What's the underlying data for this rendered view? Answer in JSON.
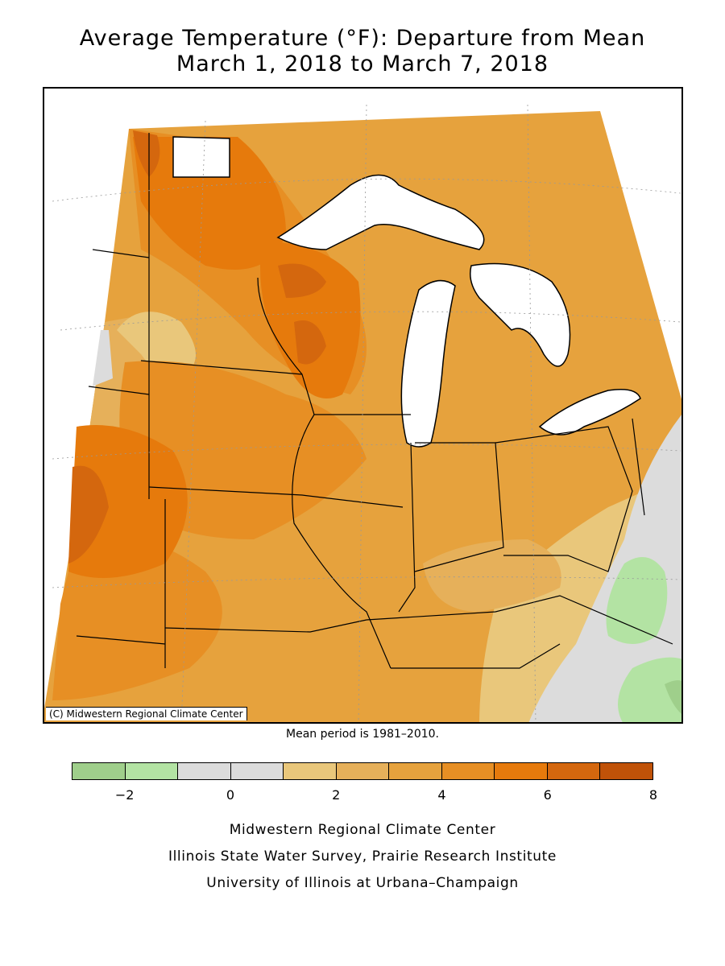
{
  "title": {
    "line1": "Average Temperature (°F): Departure from Mean",
    "line2": "March 1, 2018 to March 7, 2018"
  },
  "map": {
    "copyright": "(C) Midwestern Regional Climate Center"
  },
  "mean_period": "Mean period is 1981–2010.",
  "legend": {
    "ticks": [
      "−2",
      "0",
      "2",
      "4",
      "6",
      "8"
    ],
    "colors": [
      "#9fcf8b",
      "#b3e3a3",
      "#dcdcdc",
      "#dcdcdc",
      "#e9c77b",
      "#e6b05a",
      "#e6a23d",
      "#e78f24",
      "#e67a0c",
      "#d4670e",
      "#c05208"
    ]
  },
  "credits": [
    "Midwestern Regional Climate Center",
    "Illinois State Water Survey, Prairie Research Institute",
    "University of Illinois at Urbana–Champaign"
  ]
}
